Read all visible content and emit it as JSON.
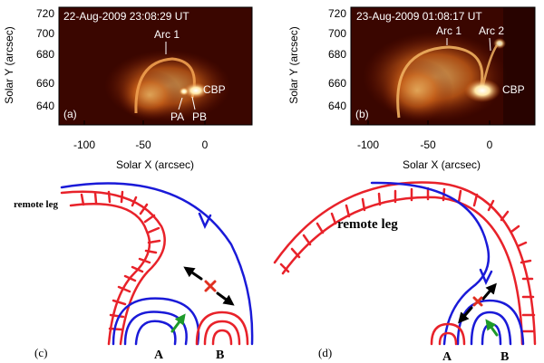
{
  "panel_a": {
    "timestamp": "22-Aug-2009 23:08:29 UT",
    "label": "(a)",
    "xlabel": "Solar X (arcsec)",
    "ylabel": "Solar Y (arcsec)",
    "xticks": [
      "-100",
      "-50",
      "0"
    ],
    "yticks": [
      "720",
      "700",
      "680",
      "660",
      "640"
    ],
    "annotations": {
      "arc1": "Arc 1",
      "cbp": "CBP",
      "pa": "PA",
      "pb": "PB"
    }
  },
  "panel_b": {
    "timestamp": "23-Aug-2009 01:08:17 UT",
    "label": "(b)",
    "xlabel": "Solar X (arcsec)",
    "ylabel": "Solar Y (arcsec)",
    "xticks": [
      "-100",
      "-50",
      "0"
    ],
    "yticks": [
      "720",
      "700",
      "680",
      "660",
      "640"
    ],
    "annotations": {
      "arc1": "Arc 1",
      "arc2": "Arc 2",
      "cbp": "CBP"
    }
  },
  "panel_c": {
    "label": "(c)",
    "remote_leg": "remote leg",
    "a": "A",
    "b": "B"
  },
  "panel_d": {
    "label": "(d)",
    "remote_leg": "remote leg",
    "a": "A",
    "b": "B"
  },
  "colors": {
    "field_red": "#e8222a",
    "field_blue": "#1a1ad8",
    "arrow_green": "#1e9a2a",
    "marker_red": "#e03020"
  }
}
